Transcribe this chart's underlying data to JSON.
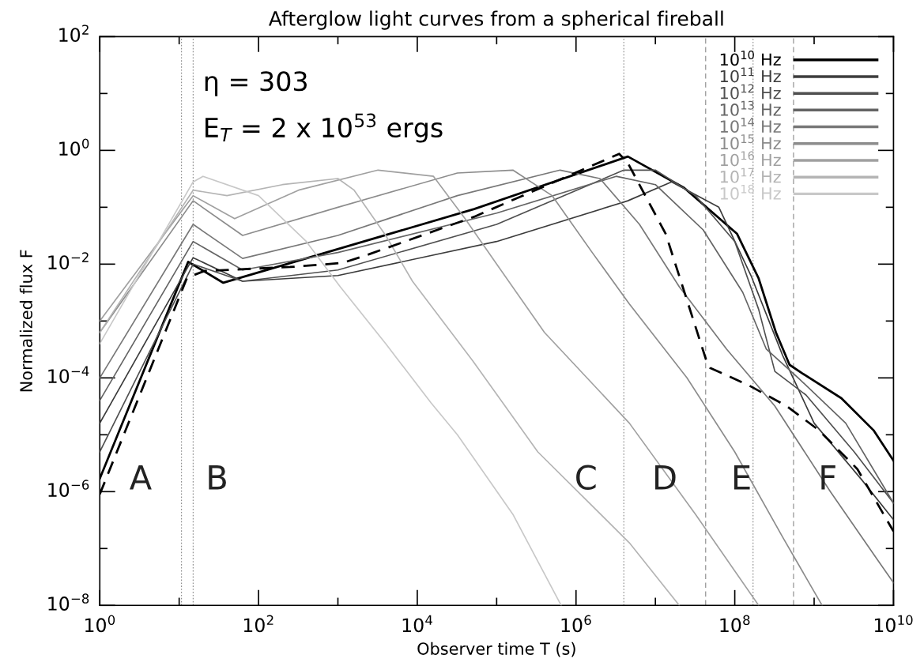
{
  "chart_data": {
    "type": "line",
    "title": "Afterglow light curves from a spherical fireball",
    "xlabel": "Observer time T (s)",
    "ylabel": "Normalized flux F",
    "log": "xy",
    "grid": false,
    "legend": "top right",
    "line_style": "solid",
    "marker": "none",
    "xlim": [
      1,
      10000000000
    ],
    "ylim": [
      1e-08,
      100
    ],
    "xticks": [
      {
        "value": 1,
        "label": "10$^{0}$"
      },
      {
        "value": 10,
        "label": null
      },
      {
        "value": 100,
        "label": "10$^{2}$"
      },
      {
        "value": 1000,
        "label": null
      },
      {
        "value": 10000,
        "label": "10$^{4}$"
      },
      {
        "value": 100000,
        "label": null
      },
      {
        "value": 1000000,
        "label": "10$^{6}$"
      },
      {
        "value": 10000000,
        "label": null
      },
      {
        "value": 100000000,
        "label": "10$^{8}$"
      },
      {
        "value": 1000000000,
        "label": null
      },
      {
        "value": 10000000000,
        "label": "10$^{10}$"
      }
    ],
    "yticks": [
      {
        "value": 1e-08,
        "label": "10$^{−8}$"
      },
      {
        "value": 1e-07,
        "label": null
      },
      {
        "value": 1e-06,
        "label": "10$^{−6}$"
      },
      {
        "value": 1e-05,
        "label": null
      },
      {
        "value": 0.0001,
        "label": "10$^{−4}$"
      },
      {
        "value": 0.001,
        "label": null
      },
      {
        "value": 0.01,
        "label": "10$^{−2}$"
      },
      {
        "value": 0.1,
        "label": null
      },
      {
        "value": 1,
        "label": "10$^{0}$"
      },
      {
        "value": 10,
        "label": null
      },
      {
        "value": 100,
        "label": "10$^{2}$"
      }
    ],
    "series": [
      {
        "name": "10$^{10}$ Hz",
        "color": "#000000",
        "x": [
          1,
          13,
          36,
          52000,
          4500000,
          23000000,
          107000000,
          200000000,
          330000000,
          490000000,
          710000000,
          2200000000,
          5600000000,
          10000000000
        ],
        "values": [
          1.7e-06,
          0.011,
          0.0047,
          0.093,
          0.78,
          0.22,
          0.034,
          0.0056,
          0.00063,
          0.00017,
          0.00012,
          4.4e-05,
          1.2e-05,
          3.5e-06
        ]
      },
      {
        "name": "10$^{11}$ Hz",
        "color": "#3c3c3c",
        "x": [
          1,
          15,
          63,
          1000,
          100000,
          4500000,
          16000000,
          63000000,
          160000000,
          400000000,
          1000000000,
          4000000000,
          10000000000
        ],
        "values": [
          1.6e-05,
          0.013,
          0.005,
          0.0063,
          0.025,
          0.13,
          0.28,
          0.1,
          0.0063,
          0.00025,
          1.6e-05,
          1.6e-06,
          3.2e-07
        ]
      },
      {
        "name": "10$^{12}$ Hz",
        "color": "#505050",
        "x": [
          1,
          15,
          63,
          1000,
          100000,
          4000000,
          10000000,
          32000000,
          100000000,
          200000000,
          320000000,
          790000000,
          3200000000,
          10000000000
        ],
        "values": [
          5e-06,
          0.01,
          0.005,
          0.0079,
          0.05,
          0.45,
          0.45,
          0.16,
          0.025,
          0.0016,
          0.00013,
          5e-05,
          5e-06,
          6.3e-07
        ]
      },
      {
        "name": "10$^{13}$ Hz",
        "color": "#646464",
        "x": [
          1,
          15,
          63,
          1000,
          100000,
          3200000,
          10000000,
          40000000,
          126000000,
          250000000,
          630000000,
          2500000000,
          10000000000
        ],
        "values": [
          4e-05,
          0.025,
          0.0079,
          0.016,
          0.079,
          0.35,
          0.25,
          0.04,
          0.0032,
          0.00032,
          0.0001,
          1.6e-05,
          6.3e-07
        ]
      },
      {
        "name": "10$^{14}$ Hz",
        "color": "#787878",
        "x": [
          1,
          15,
          63,
          1000,
          32000,
          630000,
          2000000,
          6300000,
          20000000,
          79000000,
          320000000,
          1600000000,
          6300000000,
          10000000000
        ],
        "values": [
          0.0001,
          0.05,
          0.0126,
          0.032,
          0.16,
          0.45,
          0.32,
          0.05,
          0.004,
          0.00032,
          3.2e-05,
          1e-06,
          6.3e-08,
          2.5e-08
        ]
      },
      {
        "name": "10$^{15}$ Hz",
        "color": "#8c8c8c",
        "x": [
          1,
          15,
          63,
          1000,
          32000,
          160000,
          500000,
          1600000,
          4700000,
          25000000,
          100000000,
          400000000,
          1260000000
        ],
        "values": [
          0.00063,
          0.13,
          0.032,
          0.1,
          0.4,
          0.45,
          0.16,
          0.016,
          0.002,
          0.0001,
          5e-06,
          1.6e-07,
          1e-08
        ]
      },
      {
        "name": "10$^{16}$ Hz",
        "color": "#a0a0a0",
        "x": [
          1,
          15,
          50,
          320,
          3200,
          16000,
          40000,
          100000,
          400000,
          4700000,
          32000000,
          200000000
        ],
        "values": [
          0.001,
          0.16,
          0.063,
          0.2,
          0.45,
          0.35,
          0.063,
          0.01,
          0.00063,
          1.6e-05,
          4e-07,
          1e-08
        ]
      },
      {
        "name": "10$^{17}$ Hz",
        "color": "#b4b4b4",
        "x": [
          1,
          15,
          40,
          200,
          1000,
          1600,
          4000,
          8700,
          50000,
          330000,
          4700000,
          20000000
        ],
        "values": [
          0.00063,
          0.2,
          0.16,
          0.25,
          0.32,
          0.2,
          0.032,
          0.005,
          0.0002,
          5e-06,
          1.26e-07,
          1e-08
        ]
      },
      {
        "name": "10$^{18}$ Hz",
        "color": "#c8c8c8",
        "x": [
          1,
          15,
          20,
          100,
          400,
          1070,
          4000,
          15000,
          32000,
          160000,
          650000
        ],
        "values": [
          0.0004,
          0.28,
          0.35,
          0.16,
          0.025,
          0.004,
          0.0004,
          3.6e-05,
          1e-05,
          4e-07,
          1e-08
        ]
      },
      {
        "color": "#000000",
        "line_style": "dashed",
        "x": [
          1,
          12.6,
          21,
          250,
          1150,
          2500,
          52000,
          3500000,
          4500000,
          13500000,
          45000000,
          49000000,
          150000000,
          450000000,
          1150000000,
          3500000000,
          10000000000
        ],
        "values": [
          9e-07,
          0.0058,
          0.0076,
          0.0089,
          0.0105,
          0.015,
          0.068,
          0.87,
          0.6,
          0.034,
          0.00018,
          0.00015,
          7.4e-05,
          3.2e-05,
          1.2e-05,
          2.5e-06,
          2e-07
        ]
      }
    ],
    "ref_lines": [
      {
        "axis": "x",
        "value": 10.7,
        "color": "#888888",
        "line_style": "dotted"
      },
      {
        "axis": "x",
        "value": 15,
        "color": "#888888",
        "line_style": "dotted"
      },
      {
        "axis": "x",
        "value": 4000000,
        "color": "#888888",
        "line_style": "dotted"
      },
      {
        "axis": "x",
        "value": 43000000,
        "color": "#888888",
        "line_style": "dashed"
      },
      {
        "axis": "x",
        "value": 170000000,
        "color": "#888888",
        "line_style": "dotted"
      },
      {
        "axis": "x",
        "value": 550000000,
        "color": "#888888",
        "line_style": "dashed"
      }
    ],
    "annotations": [
      "η = 303",
      "E$_{T}$ = 2 x 10$^{53}$ ergs",
      "A",
      "B",
      "C",
      "D",
      "E",
      "F"
    ]
  }
}
